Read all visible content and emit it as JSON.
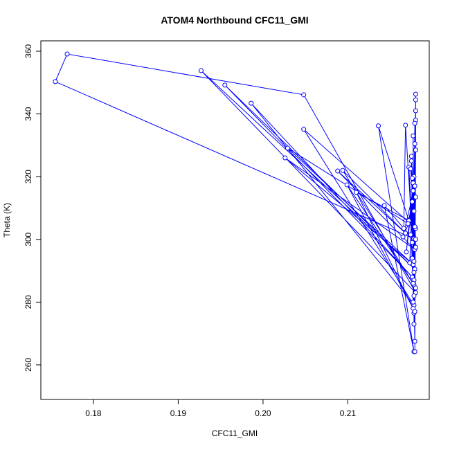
{
  "chart_data": {
    "type": "line",
    "title": "ATOM4 Northbound CFC11_GMI",
    "x_label": "CFC11_GMI",
    "y_label": "Theta (K)",
    "color": "#0000ff",
    "x": [
      0.2178,
      0.1755,
      0.1769,
      0.2048,
      0.218,
      0.1927,
      0.2179,
      0.1955,
      0.2176,
      0.1986,
      0.2178,
      0.2048,
      0.218,
      0.2029,
      0.2177,
      0.2026,
      0.2179,
      0.2088,
      0.2168,
      0.2094,
      0.2178,
      0.2099,
      0.2177,
      0.211,
      0.2172,
      0.2136,
      0.2178,
      0.2143,
      0.2166,
      0.2168,
      0.218,
      0.2172,
      0.2178,
      0.2175,
      0.2179,
      0.2177,
      0.2178,
      0.218,
      0.2179,
      0.218,
      0.2177,
      0.218,
      0.2179,
      0.218,
      0.2178,
      0.2179,
      0.2176,
      0.2178,
      0.2173,
      0.2177,
      0.2169,
      0.2176,
      0.2171,
      0.2178,
      0.2165,
      0.2179,
      0.2174,
      0.2176,
      0.218,
      0.2178,
      0.2175,
      0.218,
      0.2177,
      0.2179,
      0.2174,
      0.218,
      0.2176,
      0.2178,
      0.2179,
      0.2177,
      0.218,
      0.2178
    ],
    "values": [
      300.2,
      350.3,
      359.1,
      346.1,
      283.0,
      353.8,
      290.5,
      349.2,
      288.0,
      343.4,
      279.0,
      335.1,
      303.5,
      329.1,
      292.0,
      326.0,
      296.8,
      321.8,
      302.0,
      322.0,
      285.5,
      317.4,
      278.0,
      315.0,
      306.0,
      336.2,
      264.2,
      310.8,
      303.5,
      336.4,
      284.5,
      323.0,
      276.5,
      325.0,
      267.5,
      333.0,
      273.0,
      346.3,
      277.0,
      341.0,
      280.0,
      344.5,
      264.2,
      338.0,
      287.0,
      330.5,
      299.0,
      320.0,
      292.5,
      318.0,
      296.0,
      312.0,
      305.0,
      309.0,
      300.8,
      317.0,
      301.5,
      294.0,
      313.5,
      289.5,
      326.5,
      297.5,
      315.5,
      304.0,
      322.5,
      300.0,
      319.5,
      293.0,
      337.0,
      286.0,
      328.5,
      282.0
    ],
    "xlim": [
      0.1738,
      0.2196
    ],
    "ylim": [
      248.96,
      363.3
    ],
    "xticks": [
      0.18,
      0.19,
      {
        "value": 0.2,
        "label": "0.20"
      },
      0.21
    ],
    "yticks": [
      260,
      280,
      300,
      320,
      340,
      360
    ]
  }
}
